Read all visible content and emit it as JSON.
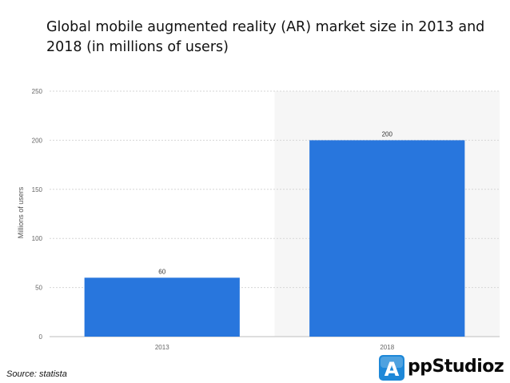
{
  "title": "Global mobile augmented reality (AR) market size in 2013 and 2018 (in millions of users)",
  "source": "Source: statista",
  "logo": {
    "letter": "A",
    "text": "ppStudioz",
    "accent_color": "#1e88d8"
  },
  "colors": {
    "bar": "#2876dd",
    "grid": "#d6d6d6",
    "highlight_band": "#f6f6f6",
    "tick_text": "#666666"
  },
  "chart_data": {
    "type": "bar",
    "categories": [
      "2013",
      "2018"
    ],
    "values": [
      60,
      200
    ],
    "data_labels": [
      "60",
      "200"
    ],
    "ylabel": "Millions of users",
    "xlabel": "",
    "ylim": [
      0,
      250
    ],
    "yticks": [
      "0",
      "50",
      "100",
      "150",
      "200",
      "250"
    ],
    "grid": true,
    "highlighted_category": "2018"
  }
}
